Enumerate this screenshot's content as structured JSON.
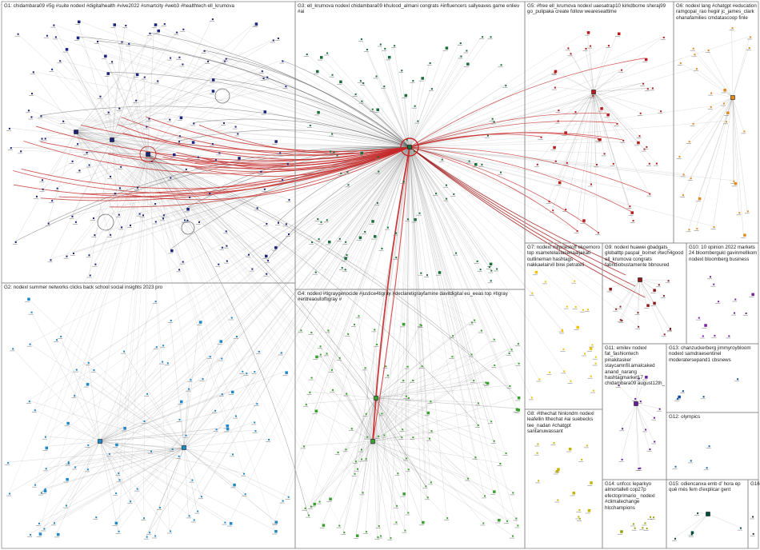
{
  "groups": [
    {
      "id": "G1",
      "label": "G1: chidambara09 #5g #suite nodexl #digitalhealth #vive2022 #smartcity #web3 #healthtech ell_krumova",
      "color": "#1a237e"
    },
    {
      "id": "G2",
      "label": "G2: nodexl summer networks clicks back school social insights 2023 pro",
      "color": "#1e88c8"
    },
    {
      "id": "G3",
      "label": "G3: ell_krumova nodexl chidambara09 khulood_almani congrats #influencers sallyeaves game enliev #ai",
      "color": "#1b6e3a"
    },
    {
      "id": "G4",
      "label": "G4: nodexl #tigraygenocide #justice4tigray #declaretigrayfamine davitdigital eu_eeas top #tigray #eritreaoutoftigray #",
      "color": "#3aa02e"
    },
    {
      "id": "G5",
      "label": "G5: #free ell_krumova nodexl uaesatrap10 kirkdborne sheraj99 go_pulipaka create follow weareseattime",
      "color": "#b71c1c"
    },
    {
      "id": "G6",
      "label": "G6: nodexl lang #chatgpt #education ramgopal_rao hegiir jc_james_clark ohanafamilies cmdatascoop finle",
      "color": "#e08a1e"
    },
    {
      "id": "G7",
      "label": "G7: nodexl mitpriestoff ekoemoro top xsametelaslasenaaljakati outlineman hashtags nakkaelairvil birei petrateli",
      "color": "#f2c200"
    },
    {
      "id": "G8",
      "label": "G8: #lthechat hinlondm nodexl leafellin lthechat #ai suebecks tee_nadan #chatgpt santanuwassant",
      "color": "#c8b400"
    },
    {
      "id": "G9",
      "label": "G9: nodexl huawei gbadgats_ globalttp paspal_bomet #tech4good ell_krumova congrats fabridiobustamente bbnoured",
      "color": "#8a1a1a"
    },
    {
      "id": "G10",
      "label": "G10: 10 opinion 2022 markets 24 bloombergukl gavinmellkom nodexl bloomberg business",
      "color": "#7b1fa2"
    },
    {
      "id": "G11",
      "label": "G11: emilev nodexl fat_fashiontech pinakitasker staycamnfil.amalcaked anand_narang hashtagmarket17 chidambara09 august12th_",
      "color": "#6a1b9a"
    },
    {
      "id": "G12",
      "label": "G12: olympics",
      "color": "#1565c0"
    },
    {
      "id": "G13",
      "label": "G13: chanzuckerberg jimmyroybloom nodexl samdraesentinel moderatersepand1 cbsnews",
      "color": "#0d47a1"
    },
    {
      "id": "G14",
      "label": "G14: unfccc leparkyo almortallell cop27p efectoprimario_ nodexl #climatechange hlcchampions",
      "color": "#9aa000"
    },
    {
      "id": "G15",
      "label": "G15: odiencanxa emb d' hora ep què més fem d'explicar gent",
      "color": "#004d40"
    },
    {
      "id": "G16",
      "label": "G16:",
      "color": "#333333"
    }
  ]
}
